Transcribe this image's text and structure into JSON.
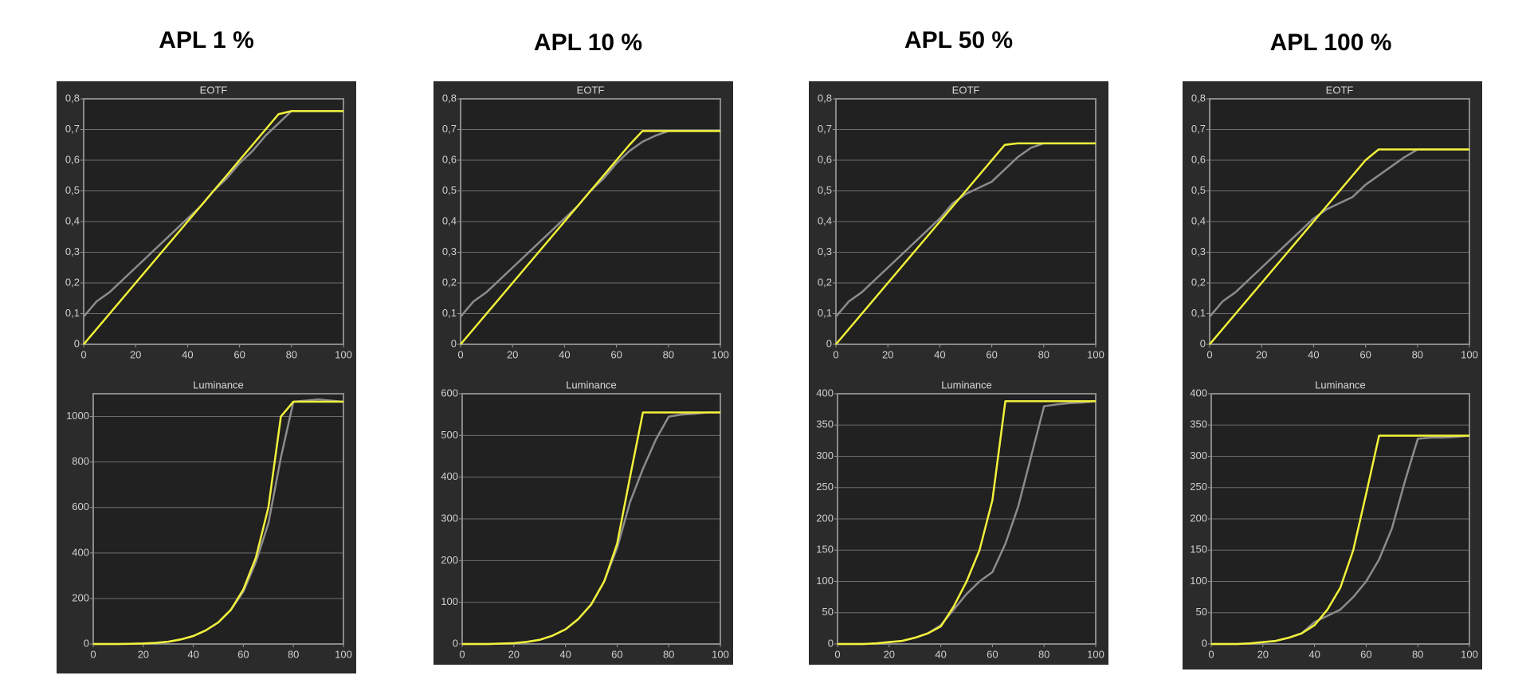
{
  "headings": [
    "APL 1 %",
    "APL 10 %",
    "APL 50 %",
    "APL 100 %"
  ],
  "chart_data": [
    {
      "type": "line",
      "title": "EOTF",
      "x": [
        0,
        5,
        10,
        15,
        20,
        25,
        30,
        35,
        40,
        45,
        50,
        55,
        60,
        65,
        70,
        75,
        80,
        85,
        90,
        95,
        100
      ],
      "xlim": [
        0,
        100
      ],
      "xticks": [
        0,
        20,
        40,
        60,
        80,
        100
      ],
      "ylim": [
        0,
        0.8
      ],
      "yticks": [
        0,
        {
          "value": 0.1,
          "label": "0,1"
        },
        {
          "value": 0.2,
          "label": "0,2"
        },
        {
          "value": 0.3,
          "label": "0,3"
        },
        {
          "value": 0.4,
          "label": "0,4"
        },
        {
          "value": 0.5,
          "label": "0,5"
        },
        {
          "value": 0.6,
          "label": "0,6"
        },
        {
          "value": 0.7,
          "label": "0,7"
        },
        {
          "value": 0.8,
          "label": "0,8"
        }
      ],
      "grid": true,
      "series": [
        {
          "color": "#8c8c8c",
          "values": [
            0.09,
            0.14,
            0.17,
            0.21,
            0.25,
            0.29,
            0.33,
            0.37,
            0.41,
            0.45,
            0.5,
            0.54,
            0.59,
            0.63,
            0.68,
            0.72,
            0.76,
            0.76,
            0.76,
            0.76,
            0.76
          ]
        },
        {
          "color": "#f2f23a",
          "values": [
            0,
            0.05,
            0.1,
            0.15,
            0.2,
            0.25,
            0.3,
            0.35,
            0.4,
            0.45,
            0.5,
            0.55,
            0.6,
            0.65,
            0.7,
            0.75,
            0.76,
            0.76,
            0.76,
            0.76,
            0.76
          ]
        }
      ]
    },
    {
      "type": "line",
      "title": "Luminance",
      "x": [
        0,
        5,
        10,
        15,
        20,
        25,
        30,
        35,
        40,
        45,
        50,
        55,
        60,
        65,
        70,
        75,
        80,
        85,
        90,
        95,
        100
      ],
      "xlim": [
        0,
        100
      ],
      "xticks": [
        0,
        20,
        40,
        60,
        80,
        100
      ],
      "ylim": [
        0,
        1100
      ],
      "yticks": [
        0,
        200,
        400,
        600,
        800,
        1000
      ],
      "grid": true,
      "series": [
        {
          "color": "#8c8c8c",
          "values": [
            0,
            0,
            0,
            1,
            2,
            5,
            10,
            20,
            35,
            60,
            95,
            150,
            230,
            360,
            530,
            820,
            1065,
            1070,
            1075,
            1070,
            1065
          ]
        },
        {
          "color": "#f2f23a",
          "values": [
            0,
            0,
            0,
            1,
            2,
            5,
            10,
            20,
            35,
            60,
            95,
            150,
            240,
            380,
            600,
            1000,
            1065,
            1065,
            1065,
            1065,
            1065
          ]
        }
      ]
    },
    {
      "type": "line",
      "title": "EOTF",
      "x": [
        0,
        5,
        10,
        15,
        20,
        25,
        30,
        35,
        40,
        45,
        50,
        55,
        60,
        65,
        70,
        75,
        80,
        85,
        90,
        95,
        100
      ],
      "xlim": [
        0,
        100
      ],
      "xticks": [
        0,
        20,
        40,
        60,
        80,
        100
      ],
      "ylim": [
        0,
        0.8
      ],
      "yticks": [
        0,
        {
          "value": 0.1,
          "label": "0,1"
        },
        {
          "value": 0.2,
          "label": "0,2"
        },
        {
          "value": 0.3,
          "label": "0,3"
        },
        {
          "value": 0.4,
          "label": "0,4"
        },
        {
          "value": 0.5,
          "label": "0,5"
        },
        {
          "value": 0.6,
          "label": "0,6"
        },
        {
          "value": 0.7,
          "label": "0,7"
        },
        {
          "value": 0.8,
          "label": "0,8"
        }
      ],
      "grid": true,
      "series": [
        {
          "color": "#8c8c8c",
          "values": [
            0.09,
            0.14,
            0.17,
            0.21,
            0.25,
            0.29,
            0.33,
            0.37,
            0.41,
            0.45,
            0.5,
            0.54,
            0.59,
            0.63,
            0.66,
            0.68,
            0.695,
            0.695,
            0.695,
            0.695,
            0.695
          ]
        },
        {
          "color": "#f2f23a",
          "values": [
            0,
            0.05,
            0.1,
            0.15,
            0.2,
            0.25,
            0.3,
            0.35,
            0.4,
            0.45,
            0.5,
            0.55,
            0.6,
            0.65,
            0.695,
            0.695,
            0.695,
            0.695,
            0.695,
            0.695,
            0.695
          ]
        }
      ]
    },
    {
      "type": "line",
      "title": "Luminance",
      "x": [
        0,
        5,
        10,
        15,
        20,
        25,
        30,
        35,
        40,
        45,
        50,
        55,
        60,
        65,
        70,
        75,
        80,
        85,
        90,
        95,
        100
      ],
      "xlim": [
        0,
        100
      ],
      "xticks": [
        0,
        20,
        40,
        60,
        80,
        100
      ],
      "ylim": [
        0,
        600
      ],
      "yticks": [
        0,
        100,
        200,
        300,
        400,
        500,
        600
      ],
      "grid": true,
      "series": [
        {
          "color": "#8c8c8c",
          "values": [
            0,
            0,
            0,
            1,
            2,
            5,
            10,
            20,
            35,
            60,
            95,
            150,
            230,
            340,
            420,
            490,
            545,
            550,
            552,
            555,
            555
          ]
        },
        {
          "color": "#f2f23a",
          "values": [
            0,
            0,
            0,
            1,
            2,
            5,
            10,
            20,
            35,
            60,
            95,
            150,
            240,
            400,
            555,
            555,
            555,
            555,
            555,
            555,
            555
          ]
        }
      ]
    },
    {
      "type": "line",
      "title": "EOTF",
      "x": [
        0,
        5,
        10,
        15,
        20,
        25,
        30,
        35,
        40,
        45,
        50,
        55,
        60,
        65,
        70,
        75,
        80,
        85,
        90,
        95,
        100
      ],
      "xlim": [
        0,
        100
      ],
      "xticks": [
        0,
        20,
        40,
        60,
        80,
        100
      ],
      "ylim": [
        0,
        0.8
      ],
      "yticks": [
        0,
        {
          "value": 0.1,
          "label": "0,1"
        },
        {
          "value": 0.2,
          "label": "0,2"
        },
        {
          "value": 0.3,
          "label": "0,3"
        },
        {
          "value": 0.4,
          "label": "0,4"
        },
        {
          "value": 0.5,
          "label": "0,5"
        },
        {
          "value": 0.6,
          "label": "0,6"
        },
        {
          "value": 0.7,
          "label": "0,7"
        },
        {
          "value": 0.8,
          "label": "0,8"
        }
      ],
      "grid": true,
      "series": [
        {
          "color": "#8c8c8c",
          "values": [
            0.09,
            0.14,
            0.17,
            0.21,
            0.25,
            0.29,
            0.33,
            0.37,
            0.41,
            0.46,
            0.49,
            0.51,
            0.53,
            0.57,
            0.61,
            0.64,
            0.655,
            0.655,
            0.655,
            0.655,
            0.655
          ]
        },
        {
          "color": "#f2f23a",
          "values": [
            0,
            0.05,
            0.1,
            0.15,
            0.2,
            0.25,
            0.3,
            0.35,
            0.4,
            0.45,
            0.5,
            0.55,
            0.6,
            0.65,
            0.655,
            0.655,
            0.655,
            0.655,
            0.655,
            0.655,
            0.655
          ]
        }
      ]
    },
    {
      "type": "line",
      "title": "Luminance",
      "x": [
        0,
        5,
        10,
        15,
        20,
        25,
        30,
        35,
        40,
        45,
        50,
        55,
        60,
        65,
        70,
        75,
        80,
        85,
        90,
        95,
        100
      ],
      "xlim": [
        0,
        100
      ],
      "xticks": [
        0,
        20,
        40,
        60,
        80,
        100
      ],
      "ylim": [
        0,
        400
      ],
      "yticks": [
        0,
        50,
        100,
        150,
        200,
        250,
        300,
        350,
        400
      ],
      "grid": true,
      "series": [
        {
          "color": "#8c8c8c",
          "values": [
            0,
            0,
            0,
            1,
            3,
            5,
            10,
            17,
            30,
            55,
            80,
            100,
            115,
            160,
            220,
            300,
            380,
            383,
            385,
            386,
            388
          ]
        },
        {
          "color": "#f2f23a",
          "values": [
            0,
            0,
            0,
            1,
            3,
            5,
            10,
            17,
            28,
            60,
            100,
            150,
            230,
            388,
            388,
            388,
            388,
            388,
            388,
            388,
            388
          ]
        }
      ]
    },
    {
      "type": "line",
      "title": "EOTF",
      "x": [
        0,
        5,
        10,
        15,
        20,
        25,
        30,
        35,
        40,
        45,
        50,
        55,
        60,
        65,
        70,
        75,
        80,
        85,
        90,
        95,
        100
      ],
      "xlim": [
        0,
        100
      ],
      "xticks": [
        0,
        20,
        40,
        60,
        80,
        100
      ],
      "ylim": [
        0,
        0.8
      ],
      "yticks": [
        0,
        {
          "value": 0.1,
          "label": "0,1"
        },
        {
          "value": 0.2,
          "label": "0,2"
        },
        {
          "value": 0.3,
          "label": "0,3"
        },
        {
          "value": 0.4,
          "label": "0,4"
        },
        {
          "value": 0.5,
          "label": "0,5"
        },
        {
          "value": 0.6,
          "label": "0,6"
        },
        {
          "value": 0.7,
          "label": "0,7"
        },
        {
          "value": 0.8,
          "label": "0,8"
        }
      ],
      "grid": true,
      "series": [
        {
          "color": "#8c8c8c",
          "values": [
            0.09,
            0.14,
            0.17,
            0.21,
            0.25,
            0.29,
            0.33,
            0.37,
            0.41,
            0.44,
            0.46,
            0.48,
            0.52,
            0.55,
            0.58,
            0.61,
            0.635,
            0.635,
            0.635,
            0.635,
            0.635
          ]
        },
        {
          "color": "#f2f23a",
          "values": [
            0,
            0.05,
            0.1,
            0.15,
            0.2,
            0.25,
            0.3,
            0.35,
            0.4,
            0.45,
            0.5,
            0.55,
            0.6,
            0.635,
            0.635,
            0.635,
            0.635,
            0.635,
            0.635,
            0.635,
            0.635
          ]
        }
      ]
    },
    {
      "type": "line",
      "title": "Luminance",
      "x": [
        0,
        5,
        10,
        15,
        20,
        25,
        30,
        35,
        40,
        45,
        50,
        55,
        60,
        65,
        70,
        75,
        80,
        85,
        90,
        95,
        100
      ],
      "xlim": [
        0,
        100
      ],
      "xticks": [
        0,
        20,
        40,
        60,
        80,
        100
      ],
      "ylim": [
        0,
        400
      ],
      "yticks": [
        0,
        50,
        100,
        150,
        200,
        250,
        300,
        350,
        400
      ],
      "grid": true,
      "series": [
        {
          "color": "#8c8c8c",
          "values": [
            0,
            0,
            0,
            1,
            3,
            5,
            10,
            17,
            35,
            45,
            55,
            75,
            100,
            135,
            185,
            260,
            328,
            330,
            330,
            331,
            333
          ]
        },
        {
          "color": "#f2f23a",
          "values": [
            0,
            0,
            0,
            1,
            3,
            5,
            10,
            17,
            30,
            55,
            90,
            150,
            240,
            333,
            333,
            333,
            333,
            333,
            333,
            333,
            333
          ]
        }
      ]
    }
  ]
}
